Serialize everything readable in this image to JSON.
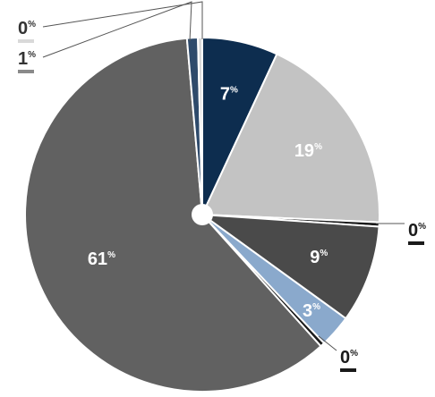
{
  "chart_data": {
    "type": "pie",
    "title": "",
    "legend": "none",
    "slices": [
      {
        "value": 7,
        "label": "7",
        "unit": "%",
        "color": "#0d2d4f",
        "label_color": "#ffffff"
      },
      {
        "value": 19,
        "label": "19",
        "unit": "%",
        "color": "#c3c3c3",
        "label_color": "#ffffff"
      },
      {
        "value": 0,
        "label": "0",
        "unit": "%",
        "color": "#1a1a1a",
        "label_color": "#1a1a1a"
      },
      {
        "value": 9,
        "label": "9",
        "unit": "%",
        "color": "#4a4a4a",
        "label_color": "#ffffff"
      },
      {
        "value": 3,
        "label": "3",
        "unit": "%",
        "color": "#8aa9cc",
        "label_color": "#ffffff"
      },
      {
        "value": 0,
        "label": "0",
        "unit": "%",
        "color": "#1a1a1a",
        "label_color": "#1a1a1a"
      },
      {
        "value": 61,
        "label": "61",
        "unit": "%",
        "color": "#616161",
        "label_color": "#ffffff"
      },
      {
        "value": 1,
        "label": "1",
        "unit": "%",
        "color": "#2e4a6b",
        "label_color": "#333333"
      },
      {
        "value": 0,
        "label": "0",
        "unit": "%",
        "color": "#d9d9d9",
        "label_color": "#333333"
      }
    ]
  }
}
